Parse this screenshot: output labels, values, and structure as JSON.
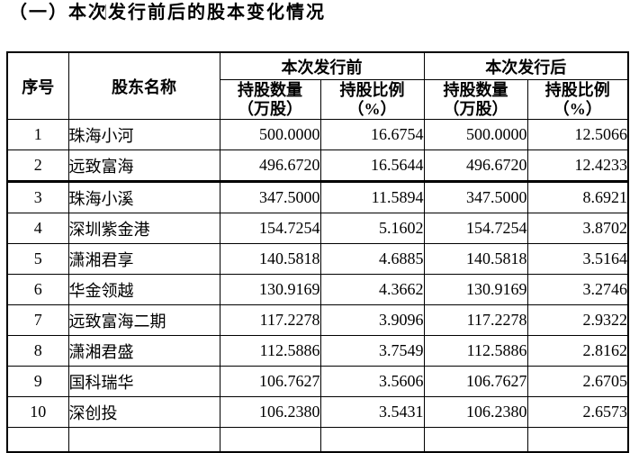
{
  "heading": "（一）本次发行前后的股本变化情况",
  "colors": {
    "background": "#ffffff",
    "text": "#000000",
    "table_border": "#000000",
    "caret": "#8a8a8a"
  },
  "table": {
    "headers": {
      "seq": "序号",
      "shareholder": "股东名称",
      "before_group": "本次发行前",
      "after_group": "本次发行后",
      "qty_line1": "持股数量",
      "qty_line2": "（万股）",
      "ratio_line1": "持股比例",
      "ratio_line2": "（%）"
    },
    "rows": [
      {
        "seq": "1",
        "name": "珠海小河",
        "before_qty": "500.0000",
        "before_ratio": "16.6754",
        "after_qty": "500.0000",
        "after_ratio": "12.5066"
      },
      {
        "seq": "2",
        "name": "远致富海",
        "before_qty": "496.6720",
        "before_ratio": "16.5644",
        "after_qty": "496.6720",
        "after_ratio": "12.4233"
      },
      {
        "seq": "3",
        "name": "珠海小溪",
        "before_qty": "347.5000",
        "before_ratio": "11.5894",
        "after_qty": "347.5000",
        "after_ratio": "8.6921"
      },
      {
        "seq": "4",
        "name": "深圳紫金港",
        "before_qty": "154.7254",
        "before_ratio": "5.1602",
        "after_qty": "154.7254",
        "after_ratio": "3.8702"
      },
      {
        "seq": "5",
        "name": "潇湘君享",
        "before_qty": "140.5818",
        "before_ratio": "4.6885",
        "after_qty": "140.5818",
        "after_ratio": "3.5164"
      },
      {
        "seq": "6",
        "name": "华金领越",
        "before_qty": "130.9169",
        "before_ratio": "4.3662",
        "after_qty": "130.9169",
        "after_ratio": "3.2746"
      },
      {
        "seq": "7",
        "name": "远致富海二期",
        "before_qty": "117.2278",
        "before_ratio": "3.9096",
        "after_qty": "117.2278",
        "after_ratio": "2.9322"
      },
      {
        "seq": "8",
        "name": "潇湘君盛",
        "before_qty": "112.5886",
        "before_ratio": "3.7549",
        "after_qty": "112.5886",
        "after_ratio": "2.8162"
      },
      {
        "seq": "9",
        "name": "国科瑞华",
        "before_qty": "106.7627",
        "before_ratio": "3.5606",
        "after_qty": "106.7627",
        "after_ratio": "2.6705"
      },
      {
        "seq": "10",
        "name": "深创投",
        "before_qty": "106.2380",
        "before_ratio": "3.5431",
        "after_qty": "106.2380",
        "after_ratio": "2.6573"
      }
    ]
  }
}
